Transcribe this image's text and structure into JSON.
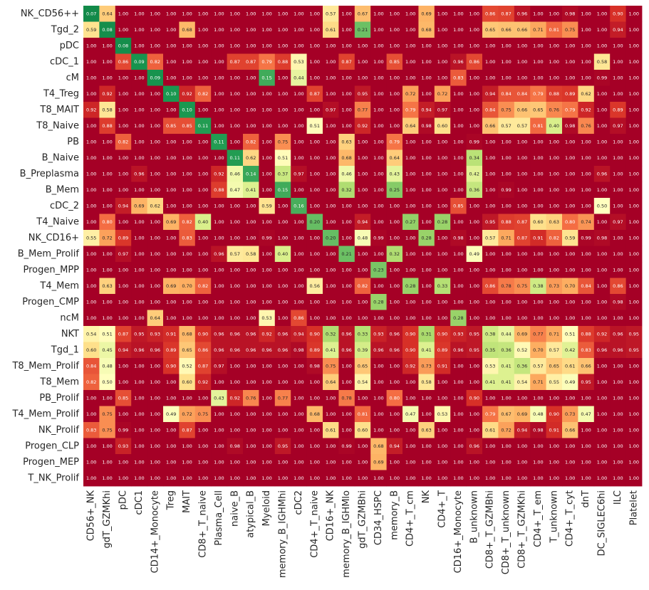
{
  "chart_data": {
    "type": "heatmap",
    "title": "",
    "xlabel": "",
    "ylabel": "",
    "colormap": "RdYlGn (low = green, high = red)",
    "value_range": [
      0,
      1
    ],
    "colors": {
      "low": "#1a9850",
      "mid": "#ffffbf",
      "high": "#a50026"
    },
    "rows": [
      "NK_CD56++",
      "Tgd_2",
      "pDC",
      "cDC_1",
      "cM",
      "T4_Treg",
      "T8_MAIT",
      "T8_Naive",
      "PB",
      "B_Naive",
      "B_Preplasma",
      "B_Mem",
      "cDC_2",
      "T4_Naive",
      "NK_CD16+",
      "B_Mem_Prolif",
      "Progen_MPP",
      "T4_Mem",
      "Progen_CMP",
      "ncM",
      "NKT",
      "Tgd_1",
      "T8_Mem_Prolif",
      "T8_Mem",
      "PB_Prolif",
      "T4_Mem_Prolif",
      "NK_Prolif",
      "Progen_CLP",
      "Progen_MEP",
      "T_NK_Prolif"
    ],
    "columns": [
      "CD56+_NK",
      "gdT_GZMKhi",
      "pDC",
      "cDC1",
      "CD14+_Monocyte",
      "Treg",
      "MAIT",
      "CD8+_T_naive",
      "Plasma_Cell",
      "naive_B",
      "atypical_B",
      "Myeloid",
      "memory_B_IGHMhi",
      "cDC2",
      "CD4+_T_naive",
      "CD16+_NK",
      "memory_B_IGHMlo",
      "gdT_GZMBhi",
      "CD34_HSPC",
      "memory_B",
      "CD4+_T_cm",
      "NK",
      "CD4+_T",
      "CD16+_Monocyte",
      "B_unknown",
      "CD8+_T_GZMBhi",
      "CD8+_T_unknown",
      "CD8+_T_GZMKhi",
      "CD4+_T_em",
      "T_unknown",
      "CD4+_T_cyt",
      "dnT",
      "DC_SIGLEC6hi",
      "ILC",
      "Platelet"
    ],
    "values": [
      [
        0.07,
        0.64,
        1.0,
        1.0,
        1.0,
        1.0,
        1.0,
        1.0,
        1.0,
        1.0,
        1.0,
        1.0,
        1.0,
        1.0,
        1.0,
        0.57,
        1.0,
        0.67,
        1.0,
        1.0,
        1.0,
        0.69,
        1.0,
        1.0,
        1.0,
        0.86,
        0.87,
        0.96,
        1.0,
        1.0,
        0.98,
        1.0,
        1.0,
        0.9,
        1.0
      ],
      [
        0.59,
        0.08,
        1.0,
        1.0,
        1.0,
        1.0,
        0.68,
        1.0,
        1.0,
        1.0,
        1.0,
        1.0,
        1.0,
        1.0,
        1.0,
        0.61,
        1.0,
        0.21,
        1.0,
        1.0,
        1.0,
        0.68,
        1.0,
        1.0,
        1.0,
        0.65,
        0.66,
        0.66,
        0.71,
        0.81,
        0.75,
        1.0,
        1.0,
        0.94,
        1.0
      ],
      [
        1.0,
        1.0,
        0.08,
        1.0,
        1.0,
        1.0,
        1.0,
        1.0,
        1.0,
        1.0,
        1.0,
        1.0,
        1.0,
        1.0,
        1.0,
        1.0,
        1.0,
        1.0,
        1.0,
        1.0,
        1.0,
        1.0,
        1.0,
        1.0,
        1.0,
        1.0,
        1.0,
        1.0,
        1.0,
        1.0,
        1.0,
        1.0,
        1.0,
        1.0,
        1.0
      ],
      [
        1.0,
        1.0,
        0.86,
        0.09,
        0.82,
        1.0,
        1.0,
        1.0,
        1.0,
        0.87,
        0.87,
        0.79,
        0.88,
        0.53,
        1.0,
        1.0,
        0.87,
        1.0,
        1.0,
        0.85,
        1.0,
        1.0,
        1.0,
        0.96,
        0.86,
        1.0,
        1.0,
        1.0,
        1.0,
        1.0,
        1.0,
        1.0,
        0.58,
        1.0,
        1.0
      ],
      [
        1.0,
        1.0,
        1.0,
        1.0,
        0.09,
        1.0,
        1.0,
        1.0,
        1.0,
        1.0,
        1.0,
        0.15,
        1.0,
        0.44,
        1.0,
        1.0,
        1.0,
        1.0,
        1.0,
        1.0,
        1.0,
        1.0,
        1.0,
        0.83,
        1.0,
        1.0,
        1.0,
        1.0,
        1.0,
        1.0,
        1.0,
        1.0,
        0.99,
        1.0,
        1.0
      ],
      [
        1.0,
        0.92,
        1.0,
        1.0,
        1.0,
        0.1,
        0.92,
        0.82,
        1.0,
        1.0,
        1.0,
        1.0,
        1.0,
        1.0,
        0.87,
        1.0,
        1.0,
        0.95,
        1.0,
        1.0,
        0.72,
        1.0,
        0.72,
        1.0,
        1.0,
        0.94,
        0.84,
        0.84,
        0.79,
        0.88,
        0.89,
        0.62,
        1.0,
        1.0,
        1.0
      ],
      [
        0.92,
        0.58,
        1.0,
        1.0,
        1.0,
        1.0,
        0.1,
        1.0,
        1.0,
        1.0,
        1.0,
        1.0,
        1.0,
        1.0,
        1.0,
        0.97,
        1.0,
        0.77,
        1.0,
        1.0,
        0.79,
        0.94,
        0.97,
        1.0,
        1.0,
        0.84,
        0.75,
        0.66,
        0.65,
        0.76,
        0.79,
        0.92,
        1.0,
        0.89,
        1.0
      ],
      [
        1.0,
        0.88,
        1.0,
        1.0,
        1.0,
        0.85,
        0.85,
        0.11,
        1.0,
        1.0,
        1.0,
        1.0,
        1.0,
        1.0,
        0.51,
        1.0,
        1.0,
        0.92,
        1.0,
        1.0,
        0.64,
        0.98,
        0.6,
        1.0,
        1.0,
        0.66,
        0.57,
        0.57,
        0.81,
        0.4,
        0.98,
        0.76,
        1.0,
        0.97,
        1.0
      ],
      [
        1.0,
        1.0,
        0.82,
        1.0,
        1.0,
        1.0,
        1.0,
        1.0,
        0.11,
        1.0,
        0.82,
        1.0,
        0.75,
        1.0,
        1.0,
        1.0,
        0.63,
        1.0,
        1.0,
        0.79,
        1.0,
        1.0,
        1.0,
        1.0,
        0.99,
        1.0,
        1.0,
        1.0,
        1.0,
        1.0,
        1.0,
        1.0,
        1.0,
        1.0,
        1.0
      ],
      [
        1.0,
        1.0,
        1.0,
        1.0,
        1.0,
        1.0,
        1.0,
        1.0,
        1.0,
        0.11,
        0.62,
        1.0,
        0.51,
        1.0,
        1.0,
        1.0,
        0.68,
        1.0,
        1.0,
        0.64,
        1.0,
        1.0,
        1.0,
        1.0,
        0.34,
        1.0,
        1.0,
        1.0,
        1.0,
        1.0,
        1.0,
        1.0,
        1.0,
        1.0,
        1.0
      ],
      [
        1.0,
        1.0,
        1.0,
        0.96,
        1.0,
        1.0,
        1.0,
        1.0,
        0.92,
        0.46,
        0.14,
        1.0,
        0.37,
        0.97,
        1.0,
        1.0,
        0.46,
        1.0,
        1.0,
        0.43,
        1.0,
        1.0,
        1.0,
        1.0,
        0.42,
        1.0,
        1.0,
        1.0,
        1.0,
        1.0,
        1.0,
        1.0,
        0.96,
        1.0,
        1.0
      ],
      [
        1.0,
        1.0,
        1.0,
        1.0,
        1.0,
        1.0,
        1.0,
        1.0,
        0.88,
        0.47,
        0.41,
        1.0,
        0.15,
        1.0,
        1.0,
        1.0,
        0.32,
        1.0,
        1.0,
        0.25,
        1.0,
        1.0,
        1.0,
        1.0,
        0.36,
        1.0,
        0.99,
        1.0,
        1.0,
        1.0,
        1.0,
        1.0,
        1.0,
        1.0,
        1.0
      ],
      [
        1.0,
        1.0,
        0.94,
        0.69,
        0.62,
        1.0,
        1.0,
        1.0,
        1.0,
        1.0,
        1.0,
        0.59,
        1.0,
        0.16,
        1.0,
        1.0,
        1.0,
        1.0,
        1.0,
        1.0,
        1.0,
        1.0,
        1.0,
        0.85,
        1.0,
        1.0,
        1.0,
        1.0,
        1.0,
        1.0,
        1.0,
        1.0,
        0.5,
        1.0,
        1.0
      ],
      [
        1.0,
        0.8,
        1.0,
        1.0,
        1.0,
        0.69,
        0.82,
        0.4,
        1.0,
        1.0,
        1.0,
        1.0,
        1.0,
        1.0,
        0.2,
        1.0,
        1.0,
        0.94,
        1.0,
        1.0,
        0.27,
        1.0,
        0.28,
        1.0,
        1.0,
        0.95,
        0.88,
        0.87,
        0.6,
        0.63,
        0.8,
        0.74,
        1.0,
        0.97,
        1.0
      ],
      [
        0.55,
        0.72,
        0.89,
        1.0,
        1.0,
        1.0,
        0.83,
        1.0,
        1.0,
        1.0,
        1.0,
        0.99,
        1.0,
        1.0,
        1.0,
        0.2,
        1.0,
        0.48,
        0.99,
        1.0,
        1.0,
        0.28,
        1.0,
        0.98,
        1.0,
        0.57,
        0.71,
        0.87,
        0.91,
        0.82,
        0.59,
        0.99,
        0.98,
        1.0,
        1.0
      ],
      [
        1.0,
        1.0,
        0.97,
        1.0,
        1.0,
        1.0,
        1.0,
        1.0,
        0.96,
        0.57,
        0.58,
        1.0,
        0.4,
        1.0,
        1.0,
        1.0,
        0.21,
        1.0,
        1.0,
        0.32,
        1.0,
        1.0,
        1.0,
        1.0,
        0.49,
        1.0,
        1.0,
        1.0,
        1.0,
        1.0,
        1.0,
        1.0,
        1.0,
        1.0,
        1.0
      ],
      [
        1.0,
        1.0,
        1.0,
        1.0,
        1.0,
        1.0,
        1.0,
        1.0,
        1.0,
        1.0,
        1.0,
        1.0,
        1.0,
        1.0,
        1.0,
        1.0,
        1.0,
        1.0,
        0.23,
        1.0,
        1.0,
        1.0,
        1.0,
        1.0,
        1.0,
        1.0,
        1.0,
        1.0,
        1.0,
        1.0,
        1.0,
        1.0,
        1.0,
        1.0,
        1.0
      ],
      [
        1.0,
        0.63,
        1.0,
        1.0,
        1.0,
        0.69,
        0.7,
        0.82,
        1.0,
        1.0,
        1.0,
        1.0,
        1.0,
        1.0,
        0.56,
        1.0,
        1.0,
        0.82,
        1.0,
        1.0,
        0.28,
        1.0,
        0.33,
        1.0,
        1.0,
        0.86,
        0.78,
        0.75,
        0.38,
        0.73,
        0.7,
        0.84,
        1.0,
        0.86,
        1.0
      ],
      [
        1.0,
        1.0,
        1.0,
        1.0,
        1.0,
        1.0,
        1.0,
        1.0,
        1.0,
        1.0,
        1.0,
        1.0,
        1.0,
        1.0,
        1.0,
        1.0,
        1.0,
        1.0,
        0.28,
        1.0,
        1.0,
        1.0,
        1.0,
        1.0,
        1.0,
        1.0,
        1.0,
        1.0,
        1.0,
        1.0,
        1.0,
        1.0,
        1.0,
        0.98,
        1.0
      ],
      [
        1.0,
        1.0,
        1.0,
        1.0,
        0.64,
        1.0,
        1.0,
        1.0,
        1.0,
        1.0,
        1.0,
        0.53,
        1.0,
        0.86,
        1.0,
        1.0,
        1.0,
        1.0,
        1.0,
        1.0,
        1.0,
        1.0,
        1.0,
        0.28,
        1.0,
        1.0,
        1.0,
        1.0,
        1.0,
        1.0,
        1.0,
        1.0,
        1.0,
        1.0,
        1.0
      ],
      [
        0.54,
        0.51,
        0.87,
        0.95,
        0.93,
        0.91,
        0.68,
        0.9,
        0.96,
        0.96,
        0.96,
        0.92,
        0.96,
        0.94,
        0.9,
        0.32,
        0.96,
        0.33,
        0.93,
        0.96,
        0.9,
        0.31,
        0.9,
        0.93,
        0.95,
        0.38,
        0.44,
        0.69,
        0.77,
        0.71,
        0.51,
        0.88,
        0.92,
        0.96,
        0.95
      ],
      [
        0.6,
        0.45,
        0.94,
        0.96,
        0.96,
        0.89,
        0.65,
        0.86,
        0.96,
        0.96,
        0.96,
        0.96,
        0.96,
        0.98,
        0.89,
        0.41,
        0.96,
        0.39,
        0.96,
        0.96,
        0.9,
        0.41,
        0.89,
        0.96,
        0.95,
        0.35,
        0.36,
        0.52,
        0.7,
        0.57,
        0.42,
        0.83,
        0.96,
        0.96,
        0.95
      ],
      [
        0.84,
        0.48,
        1.0,
        1.0,
        1.0,
        0.9,
        0.52,
        0.87,
        0.97,
        1.0,
        1.0,
        1.0,
        1.0,
        1.0,
        0.98,
        0.75,
        1.0,
        0.65,
        1.0,
        1.0,
        0.92,
        0.73,
        0.91,
        1.0,
        1.0,
        0.53,
        0.41,
        0.36,
        0.57,
        0.65,
        0.61,
        0.66,
        1.0,
        1.0,
        1.0
      ],
      [
        0.82,
        0.5,
        1.0,
        1.0,
        1.0,
        1.0,
        0.6,
        0.92,
        1.0,
        1.0,
        1.0,
        1.0,
        1.0,
        1.0,
        1.0,
        0.64,
        1.0,
        0.54,
        1.0,
        1.0,
        1.0,
        0.58,
        1.0,
        1.0,
        1.0,
        0.41,
        0.41,
        0.54,
        0.71,
        0.55,
        0.49,
        0.95,
        1.0,
        1.0,
        1.0
      ],
      [
        1.0,
        1.0,
        0.85,
        1.0,
        1.0,
        1.0,
        1.0,
        1.0,
        0.43,
        0.92,
        0.76,
        1.0,
        0.77,
        1.0,
        1.0,
        1.0,
        0.78,
        1.0,
        1.0,
        0.8,
        1.0,
        1.0,
        1.0,
        1.0,
        0.9,
        1.0,
        1.0,
        1.0,
        1.0,
        1.0,
        1.0,
        1.0,
        1.0,
        1.0,
        1.0
      ],
      [
        1.0,
        0.75,
        1.0,
        1.0,
        1.0,
        0.49,
        0.72,
        0.75,
        1.0,
        1.0,
        1.0,
        1.0,
        1.0,
        1.0,
        0.68,
        1.0,
        1.0,
        0.81,
        1.0,
        1.0,
        0.47,
        1.0,
        0.53,
        1.0,
        1.0,
        0.79,
        0.67,
        0.69,
        0.48,
        0.9,
        0.73,
        0.47,
        1.0,
        1.0,
        1.0
      ],
      [
        0.83,
        0.75,
        0.99,
        1.0,
        1.0,
        1.0,
        0.87,
        1.0,
        1.0,
        1.0,
        1.0,
        1.0,
        1.0,
        1.0,
        1.0,
        0.61,
        1.0,
        0.6,
        1.0,
        1.0,
        1.0,
        0.63,
        1.0,
        1.0,
        1.0,
        0.61,
        0.72,
        0.94,
        0.98,
        0.91,
        0.66,
        1.0,
        1.0,
        1.0,
        1.0
      ],
      [
        1.0,
        1.0,
        0.93,
        1.0,
        1.0,
        1.0,
        1.0,
        1.0,
        1.0,
        0.98,
        1.0,
        1.0,
        0.95,
        1.0,
        1.0,
        1.0,
        0.99,
        1.0,
        0.68,
        0.94,
        1.0,
        1.0,
        1.0,
        1.0,
        0.96,
        1.0,
        1.0,
        1.0,
        1.0,
        1.0,
        1.0,
        1.0,
        1.0,
        1.0,
        1.0
      ],
      [
        1.0,
        1.0,
        1.0,
        1.0,
        1.0,
        1.0,
        1.0,
        1.0,
        1.0,
        1.0,
        1.0,
        1.0,
        1.0,
        1.0,
        1.0,
        1.0,
        1.0,
        1.0,
        0.69,
        1.0,
        1.0,
        1.0,
        1.0,
        1.0,
        1.0,
        1.0,
        1.0,
        1.0,
        1.0,
        1.0,
        1.0,
        1.0,
        1.0,
        1.0,
        1.0
      ],
      [
        1.0,
        1.0,
        1.0,
        1.0,
        1.0,
        1.0,
        1.0,
        1.0,
        1.0,
        1.0,
        1.0,
        1.0,
        1.0,
        1.0,
        1.0,
        1.0,
        1.0,
        1.0,
        1.0,
        1.0,
        1.0,
        1.0,
        1.0,
        1.0,
        1.0,
        1.0,
        1.0,
        1.0,
        1.0,
        1.0,
        1.0,
        1.0,
        1.0,
        1.0,
        1.0
      ]
    ],
    "grid": false,
    "legend": "none"
  }
}
